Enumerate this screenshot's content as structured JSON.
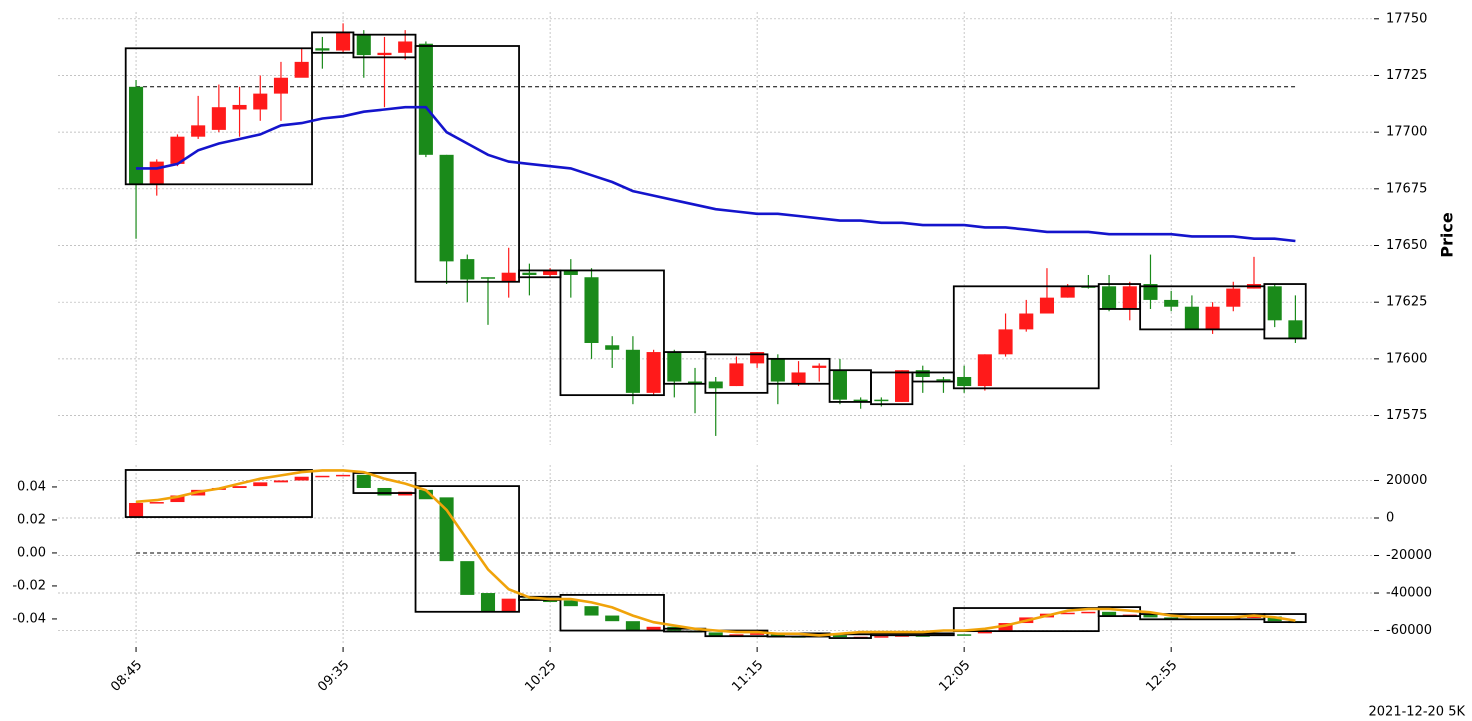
{
  "chart_data": [
    {
      "type": "candlestick",
      "ylabel": "Price",
      "up_color": "#ff1a1a",
      "down_color": "#1a8a1a",
      "open": [
        17720,
        17677,
        17686,
        17698,
        17701,
        17710,
        17710,
        17717,
        17724,
        17737,
        17736,
        17743,
        17734,
        17735,
        17739,
        17690,
        17644,
        17636,
        17634,
        17638,
        17637,
        17639,
        17636,
        17606,
        17604,
        17585,
        17603,
        17590,
        17590,
        17588,
        17598,
        17600,
        17589,
        17596,
        17595,
        17582,
        17582,
        17581,
        17595,
        17591,
        17592,
        17588,
        17602,
        17613,
        17620,
        17627,
        17632,
        17632,
        17622,
        17633,
        17626,
        17623,
        17613,
        17623,
        17631,
        17632,
        17617
      ],
      "high": [
        17723,
        17688,
        17699,
        17716,
        17721,
        17720,
        17725,
        17731,
        17737,
        17742,
        17748,
        17745,
        17742,
        17745,
        17740,
        17690,
        17646,
        17636,
        17649,
        17642,
        17640,
        17644,
        17640,
        17610,
        17610,
        17604,
        17604,
        17596,
        17592,
        17601,
        17603,
        17602,
        17599,
        17598,
        17600,
        17583,
        17583,
        17595,
        17597,
        17592,
        17597,
        17602,
        17620,
        17626,
        17640,
        17633,
        17637,
        17637,
        17634,
        17646,
        17630,
        17628,
        17625,
        17634,
        17645,
        17633,
        17628
      ],
      "low": [
        17653,
        17672,
        17685,
        17697,
        17700,
        17698,
        17705,
        17705,
        17725,
        17728,
        17735,
        17724,
        17711,
        17732,
        17689,
        17633,
        17625,
        17615,
        17627,
        17628,
        17636,
        17627,
        17600,
        17596,
        17580,
        17584,
        17583,
        17576,
        17566,
        17588,
        17596,
        17580,
        17588,
        17590,
        17580,
        17578,
        17579,
        17581,
        17585,
        17585,
        17585,
        17586,
        17601,
        17612,
        17620,
        17627,
        17631,
        17621,
        17617,
        17622,
        17621,
        17613,
        17611,
        17621,
        17631,
        17614,
        17607
      ],
      "close": [
        17677,
        17687,
        17698,
        17703,
        17711,
        17712,
        17717,
        17724,
        17731,
        17736,
        17744,
        17734,
        17735,
        17740,
        17690,
        17643,
        17635,
        17636,
        17638,
        17637,
        17639,
        17637,
        17607,
        17604,
        17585,
        17603,
        17590,
        17590,
        17587,
        17598,
        17603,
        17590,
        17594,
        17597,
        17582,
        17582,
        17582,
        17595,
        17592,
        17591,
        17588,
        17602,
        17613,
        17620,
        17627,
        17632,
        17632,
        17622,
        17632,
        17626,
        17623,
        17613,
        17623,
        17631,
        17633,
        17617,
        17609
      ],
      "line": {
        "color": "#1414cc",
        "values": [
          17684,
          17684,
          17686,
          17692,
          17695,
          17697,
          17699,
          17703,
          17704,
          17706,
          17707,
          17709,
          17710,
          17711,
          17711,
          17700,
          17695,
          17690,
          17687,
          17686,
          17685,
          17684,
          17681,
          17678,
          17674,
          17672,
          17670,
          17668,
          17666,
          17665,
          17664,
          17664,
          17663,
          17662,
          17661,
          17661,
          17660,
          17660,
          17659,
          17659,
          17659,
          17658,
          17658,
          17657,
          17656,
          17656,
          17656,
          17655,
          17655,
          17655,
          17655,
          17654,
          17654,
          17654,
          17653,
          17653,
          17652
        ]
      },
      "hline": 17720,
      "boxes": [
        {
          "start": 0,
          "end": 8,
          "high": 17737,
          "low": 17677
        },
        {
          "start": 9,
          "end": 10,
          "high": 17744,
          "low": 17735
        },
        {
          "start": 11,
          "end": 13,
          "high": 17743,
          "low": 17733
        },
        {
          "start": 14,
          "end": 18,
          "high": 17738,
          "low": 17634
        },
        {
          "start": 19,
          "end": 20,
          "high": 17639,
          "low": 17636
        },
        {
          "start": 21,
          "end": 25,
          "high": 17639,
          "low": 17584
        },
        {
          "start": 26,
          "end": 27,
          "high": 17603,
          "low": 17589
        },
        {
          "start": 28,
          "end": 30,
          "high": 17602,
          "low": 17585
        },
        {
          "start": 31,
          "end": 33,
          "high": 17600,
          "low": 17589
        },
        {
          "start": 34,
          "end": 35,
          "high": 17595,
          "low": 17581
        },
        {
          "start": 36,
          "end": 37,
          "high": 17594,
          "low": 17580
        },
        {
          "start": 38,
          "end": 39,
          "high": 17594,
          "low": 17590
        },
        {
          "start": 40,
          "end": 46,
          "high": 17632,
          "low": 17587
        },
        {
          "start": 47,
          "end": 48,
          "high": 17633,
          "low": 17622
        },
        {
          "start": 49,
          "end": 54,
          "high": 17632,
          "low": 17613
        },
        {
          "start": 55,
          "end": 56,
          "high": 17633,
          "low": 17609
        }
      ],
      "xlim": [
        -3.77,
        59.7
      ],
      "ylim": [
        17562,
        17753
      ],
      "yticks": [
        17575,
        17600,
        17625,
        17650,
        17675,
        17700,
        17725,
        17750
      ],
      "grid": true
    },
    {
      "type": "candlestick",
      "footnote": "2021-12-20 5K",
      "up_color": "#ff1a1a",
      "down_color": "#1a8a1a",
      "open": [
        500,
        8000,
        8500,
        12000,
        15000,
        16000,
        17000,
        19000,
        20000,
        22000,
        22500,
        23000,
        16000,
        12000,
        15000,
        11000,
        -23000,
        -40000,
        -50000,
        -43000,
        -44000,
        -44000,
        -47000,
        -52000,
        -55000,
        -60000,
        -58000,
        -60000,
        -61000,
        -63000,
        -62000,
        -61500,
        -63000,
        -63000,
        -62500,
        -63500,
        -63300,
        -63000,
        -62500,
        -62500,
        -62000,
        -61500,
        -60500,
        -56000,
        -53000,
        -51000,
        -50500,
        -50000,
        -52000,
        -51500,
        -53000,
        -53500,
        -54000,
        -53500,
        -53000,
        -52500,
        -55000
      ],
      "close": [
        8000,
        8500,
        12000,
        15000,
        16000,
        17000,
        19000,
        20000,
        22000,
        22500,
        23000,
        16000,
        12000,
        14000,
        10000,
        -23000,
        -41000,
        -50000,
        -43000,
        -44000,
        -44500,
        -47000,
        -52000,
        -55000,
        -60000,
        -58000,
        -60000,
        -61000,
        -63000,
        -62000,
        -61500,
        -63000,
        -63200,
        -62500,
        -63500,
        -63300,
        -63000,
        -62500,
        -62500,
        -62000,
        -62200,
        -60500,
        -56000,
        -53000,
        -51000,
        -50500,
        -50000,
        -52000,
        -51500,
        -53000,
        -53500,
        -54000,
        -53500,
        -53000,
        -52500,
        -55000,
        -56000
      ],
      "line": {
        "color": "#f0a30a",
        "axis": "y2",
        "values": [
          0.031,
          0.032,
          0.034,
          0.037,
          0.039,
          0.042,
          0.045,
          0.047,
          0.049,
          0.05,
          0.05,
          0.049,
          0.045,
          0.042,
          0.038,
          0.026,
          0.008,
          -0.01,
          -0.022,
          -0.027,
          -0.028,
          -0.028,
          -0.03,
          -0.033,
          -0.038,
          -0.042,
          -0.044,
          -0.046,
          -0.047,
          -0.048,
          -0.048,
          -0.049,
          -0.049,
          -0.05,
          -0.049,
          -0.048,
          -0.048,
          -0.048,
          -0.048,
          -0.047,
          -0.047,
          -0.046,
          -0.044,
          -0.041,
          -0.038,
          -0.035,
          -0.034,
          -0.034,
          -0.035,
          -0.036,
          -0.038,
          -0.039,
          -0.039,
          -0.039,
          -0.038,
          -0.039,
          -0.041
        ]
      },
      "hline": {
        "value": 0,
        "axis": "y2"
      },
      "boxes": [
        {
          "start": 0,
          "end": 8,
          "high": 25600,
          "low": 500
        },
        {
          "start": 11,
          "end": 13,
          "high": 24000,
          "low": 13300
        },
        {
          "start": 14,
          "end": 18,
          "high": 17000,
          "low": -50000
        },
        {
          "start": 19,
          "end": 20,
          "high": -42000,
          "low": -43700
        },
        {
          "start": 21,
          "end": 25,
          "high": -41000,
          "low": -60000
        },
        {
          "start": 26,
          "end": 27,
          "high": -59000,
          "low": -60500
        },
        {
          "start": 28,
          "end": 30,
          "high": -60000,
          "low": -63000
        },
        {
          "start": 31,
          "end": 33,
          "high": -61500,
          "low": -63200
        },
        {
          "start": 34,
          "end": 35,
          "high": -62000,
          "low": -64000
        },
        {
          "start": 36,
          "end": 39,
          "high": -61500,
          "low": -62500
        },
        {
          "start": 40,
          "end": 46,
          "high": -48000,
          "low": -60300
        },
        {
          "start": 47,
          "end": 48,
          "high": -47500,
          "low": -52300
        },
        {
          "start": 49,
          "end": 54,
          "high": -51200,
          "low": -54000
        },
        {
          "start": 55,
          "end": 56,
          "high": -51200,
          "low": -55500
        }
      ],
      "xlim": [
        -3.77,
        59.7
      ],
      "xticks": [
        {
          "value": 0,
          "label": "08:45"
        },
        {
          "value": 10,
          "label": "09:35"
        },
        {
          "value": 20,
          "label": "10:25"
        },
        {
          "value": 30,
          "label": "11:15"
        },
        {
          "value": 40,
          "label": "12:05"
        },
        {
          "value": 50,
          "label": "12:55"
        }
      ],
      "ylim": [
        -67700,
        28250
      ],
      "yticks": [
        -60000,
        -40000,
        -20000,
        0,
        20000
      ],
      "y2lim": [
        -0.0558,
        0.0533
      ],
      "y2ticks": [
        -0.04,
        -0.02,
        {
          "value": 0,
          "label": "0.00"
        },
        0.02,
        0.04
      ],
      "grid": true
    }
  ]
}
